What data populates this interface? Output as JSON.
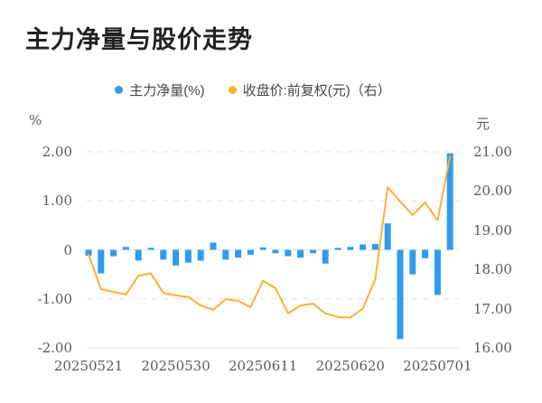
{
  "title": "主力净量与股价走势",
  "legend": {
    "items": [
      {
        "label": "主力净量(%)",
        "color": "#2f9bf0"
      },
      {
        "label": "收盘价:前复权(元)（右）",
        "color": "#fcb026"
      }
    ]
  },
  "axes": {
    "left_unit": "%",
    "right_unit": "元",
    "left_ticks": [
      "2.00",
      "1.00",
      "0",
      "-1.00",
      "-2.00"
    ],
    "right_ticks": [
      "21.00",
      "20.00",
      "19.00",
      "18.00",
      "17.00",
      "16.00"
    ],
    "x_ticks": [
      "20250521",
      "20250530",
      "20250611",
      "20250620",
      "20250701"
    ]
  },
  "chart_data": {
    "type": "bar",
    "title": "主力净量与股价走势",
    "num_points": 30,
    "x_tick_labels": [
      "20250521",
      "20250530",
      "20250611",
      "20250620",
      "20250701"
    ],
    "x_tick_indices": [
      0,
      7,
      14,
      21,
      28
    ],
    "left_axis": {
      "label": "%",
      "min": -2.0,
      "max": 2.0,
      "tick_step": 1.0
    },
    "right_axis": {
      "label": "元",
      "min": 16.0,
      "max": 21.0,
      "tick_step": 1.0
    },
    "grid": "horizontal-dashed",
    "legend_position": "top-center",
    "series": [
      {
        "name": "主力净量(%)",
        "type": "bar",
        "axis": "left",
        "color": "#2f9bf0",
        "values": [
          -0.12,
          -0.48,
          -0.13,
          0.06,
          -0.22,
          0.04,
          -0.2,
          -0.32,
          -0.26,
          -0.22,
          0.15,
          -0.2,
          -0.16,
          -0.1,
          0.05,
          -0.07,
          -0.13,
          -0.16,
          -0.07,
          -0.28,
          0.04,
          0.06,
          0.11,
          0.12,
          0.54,
          -1.82,
          -0.5,
          -0.17,
          -0.92,
          1.97
        ]
      },
      {
        "name": "收盘价:前复权(元)（右）",
        "type": "line",
        "axis": "right",
        "color": "#fbb032",
        "values": [
          18.38,
          17.5,
          17.43,
          17.36,
          17.84,
          17.9,
          17.4,
          17.34,
          17.3,
          17.08,
          16.97,
          17.24,
          17.2,
          17.04,
          17.71,
          17.52,
          16.88,
          17.08,
          17.13,
          16.88,
          16.79,
          16.77,
          17.0,
          17.75,
          20.1,
          19.73,
          19.39,
          19.71,
          19.25,
          20.88
        ]
      }
    ]
  }
}
